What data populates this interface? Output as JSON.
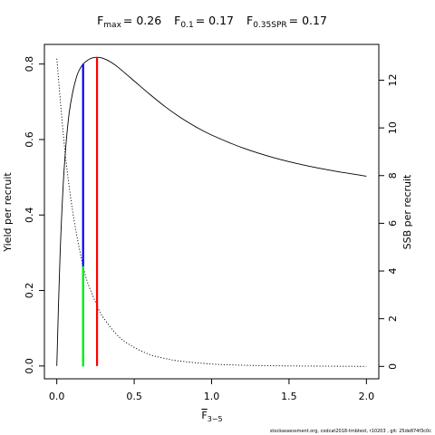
{
  "chart_data": {
    "type": "line",
    "title_parts": [
      {
        "symbol": "F",
        "sub": "max",
        "value": "= 0.26"
      },
      {
        "symbol": "F",
        "sub": "0.1",
        "value": "= 0.17"
      },
      {
        "symbol": "F",
        "sub": "0.35SPR",
        "value": "= 0.17"
      }
    ],
    "xlabel": {
      "symbol": "F",
      "sub": "3−5"
    },
    "ylabel_left": "Yield per recruit",
    "ylabel_right": "SSB per recruit",
    "xlim": [
      -0.08,
      2.08
    ],
    "ylim_left": [
      -0.034,
      0.852
    ],
    "ylim_right": [
      -0.52,
      13.5
    ],
    "x_ticks": [
      0,
      0.5,
      1,
      1.5,
      2
    ],
    "x_tick_labels": [
      "0.0",
      "0.5",
      "1.0",
      "1.5",
      "2.0"
    ],
    "y_left_ticks": [
      0,
      0.2,
      0.4,
      0.6,
      0.8
    ],
    "y_left_tick_labels": [
      "0.0",
      "0.2",
      "0.4",
      "0.6",
      "0.8"
    ],
    "y_right_ticks": [
      0,
      2,
      4,
      6,
      8,
      10,
      12
    ],
    "y_right_tick_labels": [
      "0",
      "2",
      "4",
      "6",
      "8",
      "10",
      "12"
    ],
    "series": [
      {
        "axis": "left",
        "style": "solid",
        "x": [
          0,
          0.02,
          0.04,
          0.06,
          0.08,
          0.1,
          0.12,
          0.14,
          0.17,
          0.2,
          0.22,
          0.26,
          0.3,
          0.35,
          0.4,
          0.5,
          0.6,
          0.7,
          0.8,
          0.9,
          1.0,
          1.2,
          1.4,
          1.6,
          1.8,
          2.0
        ],
        "y": [
          0,
          0.28,
          0.47,
          0.59,
          0.67,
          0.72,
          0.755,
          0.78,
          0.8,
          0.81,
          0.815,
          0.818,
          0.815,
          0.805,
          0.79,
          0.755,
          0.72,
          0.687,
          0.658,
          0.633,
          0.612,
          0.578,
          0.552,
          0.532,
          0.516,
          0.503
        ]
      },
      {
        "axis": "right",
        "style": "dotted",
        "x": [
          0,
          0.05,
          0.1,
          0.15,
          0.17,
          0.2,
          0.26,
          0.3,
          0.4,
          0.5,
          0.6,
          0.7,
          0.8,
          1.0,
          1.2,
          1.5,
          2.0
        ],
        "y": [
          12.9,
          9.2,
          6.6,
          4.8,
          4.2,
          3.5,
          2.55,
          2.05,
          1.25,
          0.8,
          0.5,
          0.33,
          0.22,
          0.1,
          0.05,
          0.02,
          0.0
        ]
      }
    ],
    "vlines": [
      {
        "x": 0.17,
        "axis": "left",
        "from": 0,
        "to": 0.8,
        "color": "#0000ff",
        "width": 2.2
      },
      {
        "x": 0.17,
        "axis": "right",
        "from": 0,
        "to": 4.2,
        "color": "#00ff00",
        "width": 2.2
      },
      {
        "x": 0.26,
        "axis": "left",
        "from": 0,
        "to": 0.818,
        "color": "#ff0000",
        "width": 2.2
      }
    ],
    "grid": false,
    "legend": "none"
  },
  "footer": "stockassessment.org, codcat2018-tmbtest,  r10203 ,  git: 25de874f3c0c"
}
